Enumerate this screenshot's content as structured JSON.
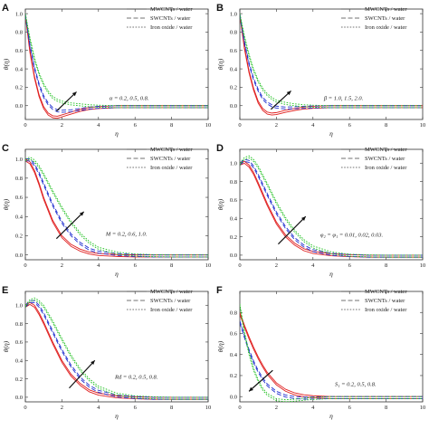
{
  "chart_data": [
    {
      "panel": "A",
      "type": "line",
      "xlabel": "η",
      "ylabel": "θ(η)",
      "xlim": [
        0,
        10
      ],
      "ylim": [
        -0.15,
        1.05
      ],
      "xticks": [
        0,
        2,
        4,
        6,
        8,
        10
      ],
      "yticks": [
        0.0,
        0.2,
        0.4,
        0.6,
        0.8,
        1.0
      ],
      "legend": [
        "MWCNTs / water",
        "SWCNTs / water",
        "Iron oxide / water"
      ],
      "annotation": "α = 0.2, 0.5, 0.8.",
      "colors": [
        "#e02020",
        "#2030d0",
        "#20c020"
      ],
      "x": [
        0,
        0.25,
        0.5,
        0.75,
        1,
        1.25,
        1.5,
        1.75,
        2,
        2.5,
        3,
        3.5,
        4,
        5,
        6,
        7,
        8,
        10
      ],
      "series": [
        {
          "values": [
            1.0,
            0.6,
            0.32,
            0.12,
            -0.01,
            -0.08,
            -0.11,
            -0.115,
            -0.1,
            -0.07,
            -0.04,
            -0.02,
            -0.01,
            0,
            0,
            0,
            0,
            0
          ]
        },
        {
          "values": [
            1.0,
            0.67,
            0.42,
            0.24,
            0.11,
            0.03,
            -0.02,
            -0.045,
            -0.05,
            -0.045,
            -0.03,
            -0.015,
            -0.007,
            0,
            0,
            0,
            0,
            0
          ]
        },
        {
          "values": [
            1.0,
            0.74,
            0.52,
            0.36,
            0.24,
            0.16,
            0.1,
            0.07,
            0.05,
            0.03,
            0.02,
            0.01,
            0.005,
            0,
            0,
            0,
            0,
            0
          ]
        }
      ]
    },
    {
      "panel": "B",
      "type": "line",
      "xlabel": "η",
      "ylabel": "θ(η)",
      "xlim": [
        0,
        10
      ],
      "ylim": [
        -0.15,
        1.05
      ],
      "xticks": [
        0,
        2,
        4,
        6,
        8,
        10
      ],
      "yticks": [
        0.0,
        0.2,
        0.4,
        0.6,
        0.8,
        1.0
      ],
      "legend": [
        "MWCNTs / water",
        "SWCNTs / water",
        "Iron oxide / water"
      ],
      "annotation": "β = 1.0, 1.5, 2.0.",
      "colors": [
        "#e02020",
        "#2030d0",
        "#20c020"
      ],
      "x": [
        0,
        0.25,
        0.5,
        0.75,
        1,
        1.25,
        1.5,
        1.75,
        2,
        2.5,
        3,
        3.5,
        4,
        5,
        6,
        7,
        8,
        10
      ],
      "series": [
        {
          "values": [
            1.0,
            0.64,
            0.38,
            0.19,
            0.05,
            -0.03,
            -0.07,
            -0.08,
            -0.075,
            -0.05,
            -0.03,
            -0.015,
            -0.007,
            0,
            0,
            0,
            0,
            0
          ]
        },
        {
          "values": [
            1.0,
            0.7,
            0.47,
            0.3,
            0.18,
            0.09,
            0.04,
            0.01,
            -0.005,
            -0.015,
            -0.012,
            -0.007,
            -0.003,
            0,
            0,
            0,
            0,
            0
          ]
        },
        {
          "values": [
            1.0,
            0.76,
            0.56,
            0.4,
            0.28,
            0.19,
            0.13,
            0.09,
            0.06,
            0.035,
            0.02,
            0.01,
            0.005,
            0,
            0,
            0,
            0,
            0
          ]
        }
      ]
    },
    {
      "panel": "C",
      "type": "line",
      "xlabel": "η",
      "ylabel": "θ(η)",
      "xlim": [
        0,
        10
      ],
      "ylim": [
        -0.05,
        1.1
      ],
      "xticks": [
        0,
        2,
        4,
        6,
        8,
        10
      ],
      "yticks": [
        0.0,
        0.2,
        0.4,
        0.6,
        0.8,
        1.0
      ],
      "legend": [
        "MWCNTs / water",
        "SWCNTs / water",
        "Iron oxide / water"
      ],
      "annotation": "M = 0.2, 0.6, 1.0.",
      "colors": [
        "#e02020",
        "#2030d0",
        "#20c020"
      ],
      "x": [
        0,
        0.25,
        0.5,
        0.75,
        1,
        1.5,
        2,
        2.5,
        3,
        3.5,
        4,
        5,
        6,
        7,
        8,
        10
      ],
      "series": [
        {
          "values": [
            1.0,
            0.97,
            0.88,
            0.75,
            0.6,
            0.36,
            0.2,
            0.11,
            0.06,
            0.03,
            0.015,
            0.005,
            0,
            0,
            0,
            0
          ]
        },
        {
          "values": [
            1.0,
            1.0,
            0.95,
            0.86,
            0.75,
            0.53,
            0.35,
            0.22,
            0.13,
            0.07,
            0.04,
            0.015,
            0.005,
            0,
            0,
            0
          ]
        },
        {
          "values": [
            1.0,
            1.02,
            0.99,
            0.93,
            0.85,
            0.67,
            0.5,
            0.35,
            0.23,
            0.14,
            0.08,
            0.03,
            0.01,
            0.003,
            0,
            0
          ]
        }
      ]
    },
    {
      "panel": "D",
      "type": "line",
      "xlabel": "η",
      "ylabel": "θ(η)",
      "xlim": [
        0,
        10
      ],
      "ylim": [
        -0.05,
        1.15
      ],
      "xticks": [
        0,
        2,
        4,
        6,
        8,
        10
      ],
      "yticks": [
        0.0,
        0.2,
        0.4,
        0.6,
        0.8,
        1.0
      ],
      "legend": [
        "MWCNTs / water",
        "SWCNTs / water",
        "Iron oxide / water"
      ],
      "annotation": "φ₂ = φ₁ = 0.01, 0.02, 0.03.",
      "colors": [
        "#e02020",
        "#2030d0",
        "#20c020"
      ],
      "x": [
        0,
        0.25,
        0.5,
        0.75,
        1,
        1.5,
        2,
        2.5,
        3,
        3.5,
        4,
        5,
        6,
        7,
        8,
        10
      ],
      "series": [
        {
          "values": [
            1.0,
            1.02,
            0.98,
            0.9,
            0.79,
            0.56,
            0.36,
            0.22,
            0.13,
            0.07,
            0.04,
            0.015,
            0.005,
            0,
            0,
            0
          ]
        },
        {
          "values": [
            1.0,
            1.04,
            1.03,
            0.97,
            0.88,
            0.67,
            0.47,
            0.31,
            0.19,
            0.11,
            0.06,
            0.02,
            0.007,
            0,
            0,
            0
          ]
        },
        {
          "values": [
            1.0,
            1.06,
            1.08,
            1.04,
            0.97,
            0.78,
            0.58,
            0.41,
            0.27,
            0.17,
            0.1,
            0.035,
            0.01,
            0.003,
            0,
            0
          ]
        }
      ]
    },
    {
      "panel": "E",
      "type": "line",
      "xlabel": "η",
      "ylabel": "θ(η)",
      "xlim": [
        0,
        10
      ],
      "ylim": [
        -0.05,
        1.15
      ],
      "xticks": [
        0,
        2,
        4,
        6,
        8,
        10
      ],
      "yticks": [
        0.0,
        0.2,
        0.4,
        0.6,
        0.8,
        1.0
      ],
      "legend": [
        "MWCNTs / water",
        "SWCNTs / water",
        "Iron oxide / water"
      ],
      "annotation": "Rd = 0.2, 0.5, 0.8.",
      "colors": [
        "#e02020",
        "#2030d0",
        "#20c020"
      ],
      "x": [
        0,
        0.25,
        0.5,
        0.75,
        1,
        1.5,
        2,
        2.5,
        3,
        3.5,
        4,
        5,
        6,
        7,
        8,
        10
      ],
      "series": [
        {
          "values": [
            1.0,
            1.03,
            1.0,
            0.92,
            0.82,
            0.6,
            0.4,
            0.25,
            0.15,
            0.08,
            0.045,
            0.015,
            0.005,
            0,
            0,
            0
          ]
        },
        {
          "values": [
            1.0,
            1.05,
            1.05,
            1.0,
            0.92,
            0.72,
            0.52,
            0.35,
            0.22,
            0.13,
            0.075,
            0.025,
            0.008,
            0,
            0,
            0
          ]
        },
        {
          "values": [
            1.0,
            1.06,
            1.08,
            1.05,
            1.0,
            0.83,
            0.64,
            0.46,
            0.31,
            0.2,
            0.12,
            0.045,
            0.015,
            0.005,
            0,
            0
          ]
        }
      ]
    },
    {
      "panel": "F",
      "type": "line",
      "xlabel": "η",
      "ylabel": "θ(η)",
      "xlim": [
        0,
        10
      ],
      "ylim": [
        -0.05,
        1.0
      ],
      "xticks": [
        0,
        2,
        4,
        6,
        8,
        10
      ],
      "yticks": [
        0.0,
        0.2,
        0.4,
        0.6,
        0.8
      ],
      "legend": [
        "MWCNTs / water",
        "SWCNTs / water",
        "Iron oxide / water"
      ],
      "annotation": "S₁ = 0.2, 0.5, 0.8.",
      "colors": [
        "#e02020",
        "#2030d0",
        "#20c020"
      ],
      "x": [
        0,
        0.25,
        0.5,
        0.75,
        1,
        1.25,
        1.5,
        2,
        2.5,
        3,
        3.5,
        4,
        5,
        6,
        8,
        10
      ],
      "series": [
        {
          "values": [
            0.8,
            0.68,
            0.57,
            0.47,
            0.38,
            0.3,
            0.23,
            0.13,
            0.07,
            0.035,
            0.017,
            0.008,
            0,
            0,
            0,
            0
          ]
        },
        {
          "values": [
            0.72,
            0.58,
            0.45,
            0.34,
            0.25,
            0.18,
            0.12,
            0.05,
            0.015,
            0.0,
            -0.005,
            -0.004,
            0,
            0,
            0,
            0
          ]
        },
        {
          "values": [
            0.88,
            0.62,
            0.42,
            0.27,
            0.16,
            0.08,
            0.03,
            -0.02,
            -0.03,
            -0.025,
            -0.015,
            -0.008,
            0,
            0,
            0,
            0
          ]
        }
      ]
    }
  ],
  "panel_letters": [
    "A",
    "B",
    "C",
    "D",
    "E",
    "F"
  ]
}
